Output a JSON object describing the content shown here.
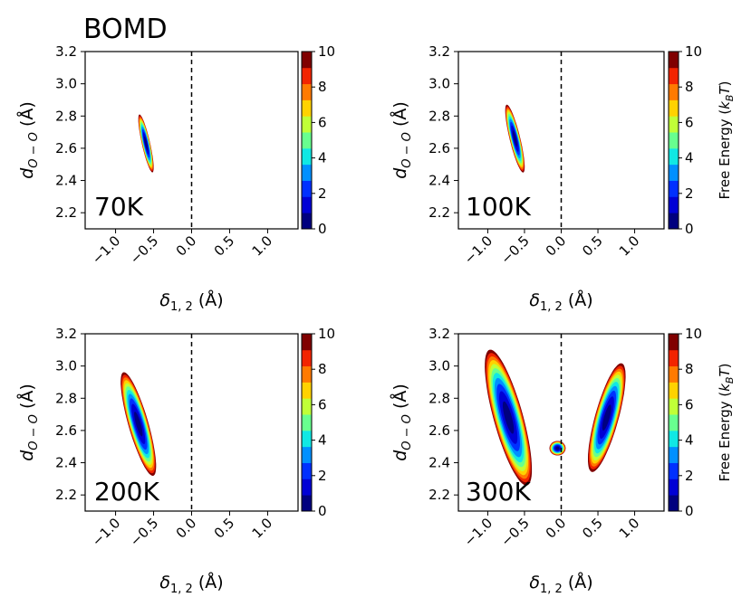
{
  "figure_title": "BOMD",
  "chart_data": [
    {
      "type": "heatmap",
      "label": "70K",
      "xlabel_main": "δ",
      "xlabel_sub": "1, 2",
      "xlabel_unit": " (Å)",
      "ylabel_main": "d",
      "ylabel_sub": "O − O",
      "ylabel_unit": " (Å)",
      "xlim": [
        -1.4,
        1.4
      ],
      "ylim": [
        2.1,
        3.2
      ],
      "xticks": [
        -1.0,
        -0.5,
        0.0,
        0.5,
        1.0
      ],
      "xtick_labels": [
        "−1.0",
        "−0.5",
        "0.0",
        "0.5",
        "1.0"
      ],
      "yticks": [
        2.2,
        2.4,
        2.6,
        2.8,
        3.0,
        3.2
      ],
      "ytick_labels": [
        "2.2",
        "2.4",
        "2.6",
        "2.8",
        "3.0",
        "3.2"
      ],
      "dashed_line_x": 0.0,
      "basins": [
        {
          "center": [
            -0.6,
            2.63
          ],
          "major": 0.2,
          "minor": 0.05,
          "angle_deg": -63,
          "fmax": 10
        }
      ],
      "colorbar": {
        "min": 0,
        "max": 10,
        "ticks": [
          0,
          2,
          4,
          6,
          8,
          10
        ],
        "label": ""
      }
    },
    {
      "type": "heatmap",
      "label": "100K",
      "xlabel_main": "δ",
      "xlabel_sub": "1, 2",
      "xlabel_unit": " (Å)",
      "ylabel_main": "d",
      "ylabel_sub": "O − O",
      "ylabel_unit": " (Å)",
      "xlim": [
        -1.4,
        1.4
      ],
      "ylim": [
        2.1,
        3.2
      ],
      "xticks": [
        -1.0,
        -0.5,
        0.0,
        0.5,
        1.0
      ],
      "xtick_labels": [
        "−1.0",
        "−0.5",
        "0.0",
        "0.5",
        "1.0"
      ],
      "yticks": [
        2.2,
        2.4,
        2.6,
        2.8,
        3.0,
        3.2
      ],
      "ytick_labels": [
        "2.2",
        "2.4",
        "2.6",
        "2.8",
        "3.0",
        "3.2"
      ],
      "dashed_line_x": 0.0,
      "basins": [
        {
          "center": [
            -0.63,
            2.66
          ],
          "major": 0.24,
          "minor": 0.065,
          "angle_deg": -60,
          "fmax": 10
        }
      ],
      "colorbar": {
        "min": 0,
        "max": 10,
        "ticks": [
          0,
          2,
          4,
          6,
          8,
          10
        ],
        "label": "Free Energy (k_BT)"
      }
    },
    {
      "type": "heatmap",
      "label": "200K",
      "xlabel_main": "δ",
      "xlabel_sub": "1, 2",
      "xlabel_unit": " (Å)",
      "ylabel_main": "d",
      "ylabel_sub": "O − O",
      "ylabel_unit": " (Å)",
      "xlim": [
        -1.4,
        1.4
      ],
      "ylim": [
        2.1,
        3.2
      ],
      "xticks": [
        -1.0,
        -0.5,
        0.0,
        0.5,
        1.0
      ],
      "xtick_labels": [
        "−1.0",
        "−0.5",
        "0.0",
        "0.5",
        "1.0"
      ],
      "yticks": [
        2.2,
        2.4,
        2.6,
        2.8,
        3.0,
        3.2
      ],
      "ytick_labels": [
        "2.2",
        "2.4",
        "2.6",
        "2.8",
        "3.0",
        "3.2"
      ],
      "dashed_line_x": 0.0,
      "basins": [
        {
          "center": [
            -0.7,
            2.64
          ],
          "major": 0.38,
          "minor": 0.115,
          "angle_deg": -56,
          "fmax": 10
        }
      ],
      "colorbar": {
        "min": 0,
        "max": 10,
        "ticks": [
          0,
          2,
          4,
          6,
          8,
          10
        ],
        "label": ""
      }
    },
    {
      "type": "heatmap",
      "label": "300K",
      "xlabel_main": "δ",
      "xlabel_sub": "1, 2",
      "xlabel_unit": " (Å)",
      "ylabel_main": "d",
      "ylabel_sub": "O − O",
      "ylabel_unit": " (Å)",
      "xlim": [
        -1.4,
        1.4
      ],
      "ylim": [
        2.1,
        3.2
      ],
      "xticks": [
        -1.0,
        -0.5,
        0.0,
        0.5,
        1.0
      ],
      "xtick_labels": [
        "−1.0",
        "−0.5",
        "0.0",
        "0.5",
        "1.0"
      ],
      "yticks": [
        2.2,
        2.4,
        2.6,
        2.8,
        3.0,
        3.2
      ],
      "ytick_labels": [
        "2.2",
        "2.4",
        "2.6",
        "2.8",
        "3.0",
        "3.2"
      ],
      "dashed_line_x": 0.0,
      "basins": [
        {
          "center": [
            -0.72,
            2.68
          ],
          "major": 0.5,
          "minor": 0.175,
          "angle_deg": -55,
          "fmax": 10
        },
        {
          "center": [
            0.62,
            2.68
          ],
          "major": 0.4,
          "minor": 0.14,
          "angle_deg": 55,
          "fmax": 10
        },
        {
          "center": [
            -0.05,
            2.49
          ],
          "major": 0.11,
          "minor": 0.045,
          "angle_deg": 0,
          "fmax": 10
        }
      ],
      "colorbar": {
        "min": 0,
        "max": 10,
        "ticks": [
          0,
          2,
          4,
          6,
          8,
          10
        ],
        "label": "Free Energy (k_BT)"
      }
    }
  ],
  "colors": {
    "levels": [
      "#00007f",
      "#0000d5",
      "#0030ff",
      "#0090ff",
      "#10e8e4",
      "#68ff8f",
      "#c0ff37",
      "#ffd200",
      "#ff7a00",
      "#f22400",
      "#800000"
    ]
  }
}
